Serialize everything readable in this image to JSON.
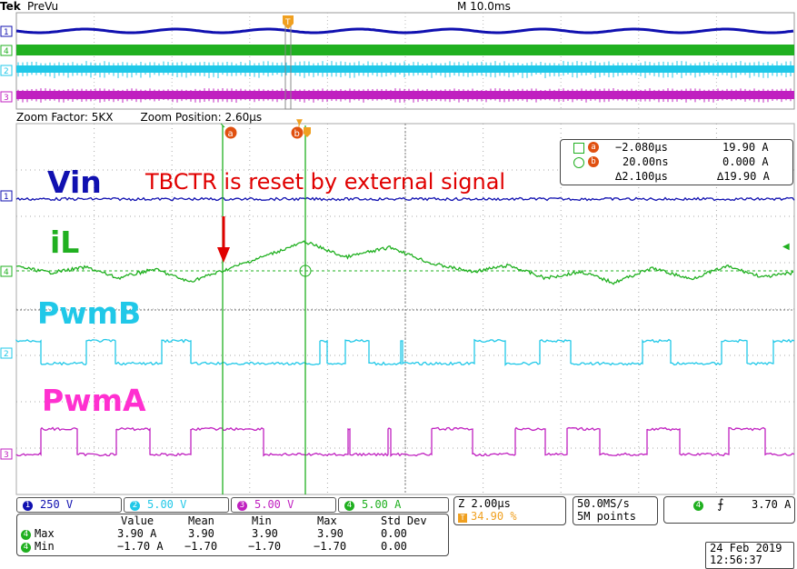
{
  "header": {
    "brand": "Tek",
    "mode": "PreVu",
    "timebase": "M 10.0ms"
  },
  "zoom": {
    "factor": "Zoom Factor: 5KX",
    "position": "Zoom Position: 2.60µs"
  },
  "annotations": {
    "title": "TBCTR is reset by external signal",
    "vin": "Vin",
    "il": "iL",
    "pwmb": "PwmB",
    "pwma": "PwmA"
  },
  "cursors": {
    "a_label": "a",
    "b_label": "b",
    "row_a": {
      "time": "−2.080µs",
      "value": "19.90 A"
    },
    "row_b": {
      "time": "20.00ns",
      "value": "0.000 A"
    },
    "row_delta": {
      "time": "∆2.100µs",
      "value": "∆19.90 A"
    }
  },
  "channels": [
    {
      "num": "1",
      "scale": "250 V",
      "color": "#1010b0"
    },
    {
      "num": "2",
      "scale": "5.00 V",
      "color": "#20c8e8"
    },
    {
      "num": "3",
      "scale": "5.00 V",
      "color": "#c020c0"
    },
    {
      "num": "4",
      "scale": "5.00 A",
      "color": "#20b020"
    }
  ],
  "zoom_panel": {
    "scale": "Z 2.00µs",
    "trigpos": "34.90 %"
  },
  "acq": {
    "rate": "50.0MS/s",
    "points": "5M points"
  },
  "trigger": {
    "channel": "4",
    "level": "3.70 A"
  },
  "measurements": {
    "headers": [
      "Value",
      "Mean",
      "Min",
      "Max",
      "Std Dev"
    ],
    "rows": [
      {
        "ch": "4",
        "name": "Max",
        "value": "3.90 A",
        "mean": "3.90",
        "min": "3.90",
        "max": "3.90",
        "std": "0.00"
      },
      {
        "ch": "4",
        "name": "Min",
        "value": "−1.70 A",
        "mean": "−1.70",
        "min": "−1.70",
        "max": "−1.70",
        "std": "0.00"
      }
    ]
  },
  "datetime": {
    "date": "24 Feb  2019",
    "time": "12:56:37"
  },
  "colors": {
    "vin": "#1010b0",
    "il": "#20b020",
    "pwmb": "#20c8e8",
    "pwma": "#c020c0",
    "title": "#e00000",
    "cursor_marker": "#e05010",
    "trigger_marker": "#f0a020"
  }
}
